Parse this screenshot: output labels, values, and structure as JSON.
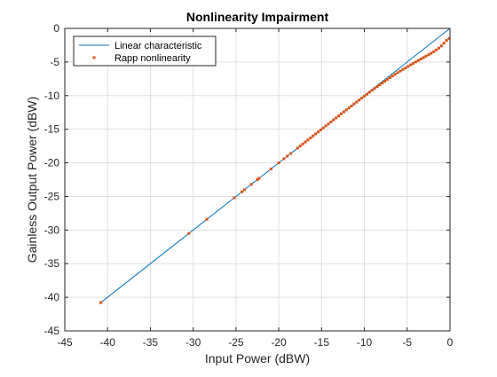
{
  "chart_data": {
    "type": "line",
    "title": "Nonlinearity Impairment",
    "xlabel": "Input Power (dBW)",
    "ylabel": "Gainless Output Power (dBW)",
    "xlim": [
      -45,
      0
    ],
    "ylim": [
      -45,
      0
    ],
    "xticks": [
      -45,
      -40,
      -35,
      -30,
      -25,
      -20,
      -15,
      -10,
      -5,
      0
    ],
    "yticks": [
      -45,
      -40,
      -35,
      -30,
      -25,
      -20,
      -15,
      -10,
      -5,
      0
    ],
    "xtick_labels": [
      "-45",
      "-40",
      "-35",
      "-30",
      "-25",
      "-20",
      "-15",
      "-10",
      "-5",
      "0"
    ],
    "ytick_labels": [
      "-45",
      "-40",
      "-35",
      "-30",
      "-25",
      "-20",
      "-15",
      "-10",
      "-5",
      "0"
    ],
    "grid": true,
    "legend_position": "top-left",
    "series": [
      {
        "name": "Linear characteristic",
        "style": "line",
        "color": "#0072bd",
        "x": [
          -40.8,
          0
        ],
        "y": [
          -40.8,
          0
        ]
      },
      {
        "name": "Rapp nonlinearity",
        "style": "markers",
        "color": "#d95319",
        "x": [
          -40.8,
          -30.5,
          -28.4,
          -25.2,
          -24.3,
          -24.0,
          -23.2,
          -22.5,
          -22.3,
          -20.9,
          -20.0,
          -19.4,
          -19.0,
          -18.6,
          -17.8,
          -17.5,
          -17.2,
          -16.9,
          -16.6,
          -16.3,
          -16.0,
          -15.7,
          -15.4,
          -15.1,
          -14.8,
          -14.5,
          -14.2,
          -13.9,
          -13.6,
          -13.3,
          -13.0,
          -12.7,
          -12.4,
          -12.1,
          -11.8,
          -11.5,
          -11.2,
          -10.9,
          -10.6,
          -10.3,
          -10.0,
          -9.7,
          -9.4,
          -9.1,
          -8.8,
          -8.5,
          -8.2,
          -7.9,
          -7.6,
          -7.3,
          -7.0,
          -6.7,
          -6.4,
          -6.1,
          -5.8,
          -5.5,
          -5.2,
          -4.9,
          -4.6,
          -4.3,
          -4.0,
          -3.7,
          -3.4,
          -3.1,
          -2.8,
          -2.5,
          -2.2,
          -1.9,
          -1.6,
          -1.3,
          -1.0,
          -0.7,
          -0.4,
          -0.1
        ],
        "y": [
          -40.8,
          -30.5,
          -28.4,
          -25.2,
          -24.3,
          -24.0,
          -23.2,
          -22.5,
          -22.3,
          -20.9,
          -20.0,
          -19.4,
          -19.0,
          -18.6,
          -17.8,
          -17.5,
          -17.2,
          -16.9,
          -16.6,
          -16.3,
          -16.0,
          -15.7,
          -15.4,
          -15.1,
          -14.81,
          -14.51,
          -14.21,
          -13.91,
          -13.61,
          -13.31,
          -13.02,
          -12.72,
          -12.42,
          -12.13,
          -11.83,
          -11.54,
          -11.24,
          -10.95,
          -10.66,
          -10.37,
          -10.08,
          -9.79,
          -9.5,
          -9.22,
          -8.94,
          -8.66,
          -8.39,
          -8.12,
          -7.85,
          -7.59,
          -7.33,
          -7.08,
          -6.83,
          -6.58,
          -6.34,
          -6.11,
          -5.88,
          -5.65,
          -5.43,
          -5.21,
          -4.99,
          -4.78,
          -4.56,
          -4.35,
          -4.14,
          -3.92,
          -3.7,
          -3.47,
          -3.22,
          -2.93,
          -2.6,
          -2.2,
          -1.8,
          -1.5
        ]
      }
    ]
  }
}
